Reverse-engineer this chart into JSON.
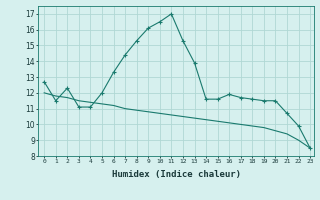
{
  "line1_x": [
    0,
    1,
    2,
    3,
    4,
    5,
    6,
    7,
    8,
    9,
    10,
    11,
    12,
    13,
    14,
    15,
    16,
    17,
    18,
    19,
    20,
    21,
    22,
    23
  ],
  "line1_y": [
    12.7,
    11.5,
    12.3,
    11.1,
    11.1,
    12.0,
    13.3,
    14.4,
    15.3,
    16.1,
    16.5,
    17.0,
    15.3,
    13.9,
    11.6,
    11.6,
    11.9,
    11.7,
    11.6,
    11.5,
    11.5,
    10.7,
    9.9,
    8.5
  ],
  "line2_x": [
    0,
    1,
    2,
    3,
    4,
    5,
    6,
    7,
    8,
    9,
    10,
    11,
    12,
    13,
    14,
    15,
    16,
    17,
    18,
    19,
    20,
    21,
    22,
    23
  ],
  "line2_y": [
    12.0,
    11.8,
    11.7,
    11.5,
    11.4,
    11.3,
    11.2,
    11.0,
    10.9,
    10.8,
    10.7,
    10.6,
    10.5,
    10.4,
    10.3,
    10.2,
    10.1,
    10.0,
    9.9,
    9.8,
    9.6,
    9.4,
    9.0,
    8.5
  ],
  "line_color": "#1a7a6e",
  "bg_color": "#d6f0ee",
  "grid_color": "#b0d8d4",
  "xlabel": "Humidex (Indice chaleur)",
  "ylim": [
    8,
    17.5
  ],
  "xlim": [
    -0.5,
    23.3
  ],
  "yticks": [
    8,
    9,
    10,
    11,
    12,
    13,
    14,
    15,
    16,
    17
  ],
  "xticks": [
    0,
    1,
    2,
    3,
    4,
    5,
    6,
    7,
    8,
    9,
    10,
    11,
    12,
    13,
    14,
    15,
    16,
    17,
    18,
    19,
    20,
    21,
    22,
    23
  ]
}
